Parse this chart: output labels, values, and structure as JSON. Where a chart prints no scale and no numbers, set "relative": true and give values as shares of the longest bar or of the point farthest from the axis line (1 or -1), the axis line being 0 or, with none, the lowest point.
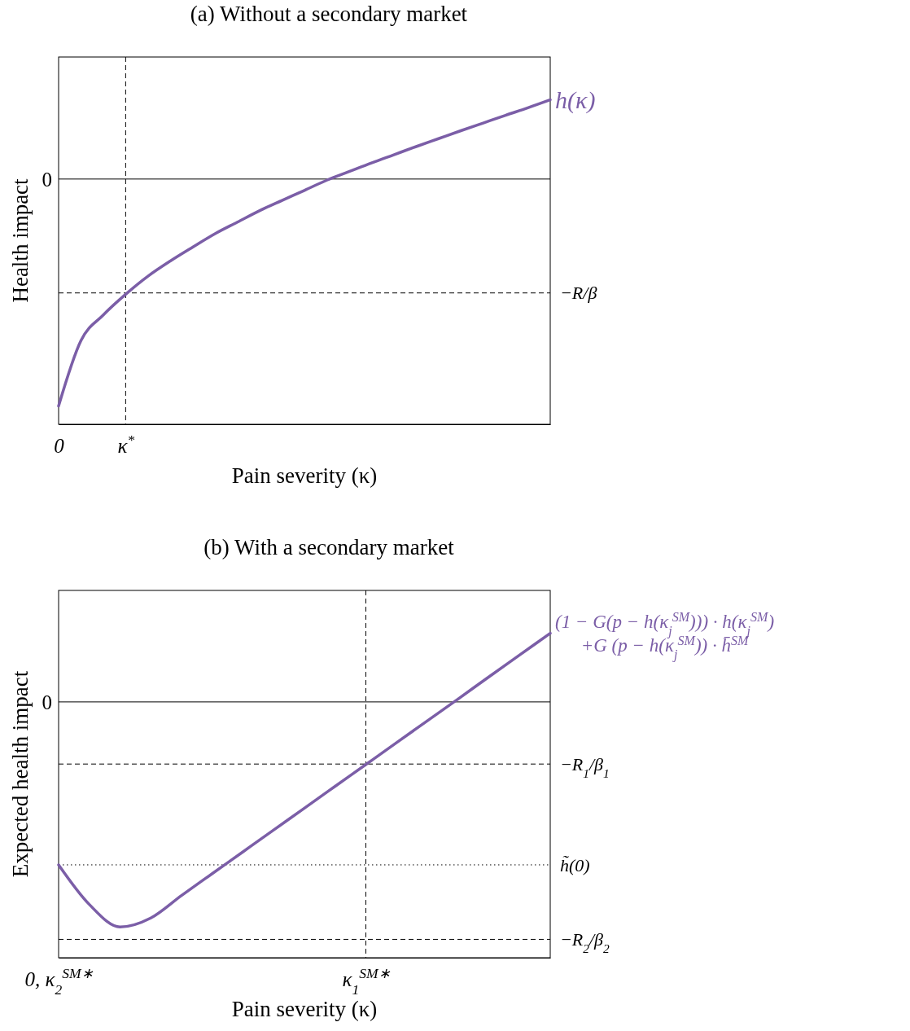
{
  "chart_data": [
    {
      "type": "line",
      "title": "(a) Without a secondary market",
      "xlabel": "Pain severity (κ)",
      "ylabel": "Health impact",
      "relative": true,
      "line_style": "solid",
      "categories": [
        "0",
        null,
        null,
        "κ$^{*}$",
        null,
        null,
        null,
        null,
        null,
        null,
        null,
        null,
        null,
        null,
        null,
        null,
        null,
        null,
        null,
        null,
        null,
        null,
        null
      ],
      "series": [
        {
          "name": "h(κ)",
          "color": "#7b5ea7",
          "values": [
            -1,
            -0.712,
            -0.599,
            -0.508,
            -0.428,
            -0.361,
            -0.3,
            -0.241,
            -0.19,
            -0.139,
            -0.094,
            -0.05,
            -0.005,
            0.033,
            0.071,
            0.107,
            0.143,
            0.178,
            0.213,
            0.247,
            0.281,
            0.314,
            0.349
          ]
        }
      ],
      "ref_lines": [
        {
          "axis": "y",
          "value": 0,
          "label": "0",
          "line_style": "solid",
          "color": "#000000"
        },
        {
          "axis": "y",
          "value": -0.502,
          "label": "−R/β",
          "line_style": "dashed",
          "color": "#000000"
        },
        {
          "axis": "x",
          "value": "κ$^{*}$",
          "line_style": "dashed",
          "color": "#000000"
        }
      ]
    },
    {
      "type": "line",
      "title": "(b) With a secondary market",
      "xlabel": "Pain severity (κ)",
      "ylabel": "Expected health impact",
      "relative": true,
      "line_style": "solid",
      "categories": [
        "0, κ$_{2}$$^{SM∗}$",
        null,
        null,
        null,
        null,
        null,
        null,
        null,
        null,
        null,
        "κ$_{1}$$^{SM∗}$",
        null,
        null,
        null,
        null,
        null,
        null
      ],
      "series": [
        {
          "name": "(1 − G(p − h(κ$_{j}$$^{SM}$))) · h(κ$_{j}$$^{SM}$)\n+G (p − h(κ$_{j}$$^{SM}$)) · h̄$^{SM}$",
          "color": "#7b5ea7",
          "values": [
            -0.724,
            -0.9,
            -1,
            -0.96,
            -0.86,
            -0.763,
            -0.666,
            -0.569,
            -0.472,
            -0.375,
            -0.278,
            -0.181,
            -0.084,
            0.013,
            0.111,
            0.208,
            0.305
          ]
        }
      ],
      "ref_lines": [
        {
          "axis": "y",
          "value": 0,
          "label": "0",
          "line_style": "solid",
          "color": "#000000"
        },
        {
          "axis": "y",
          "value": -0.276,
          "label": "−R$_{1}$/β$_{1}$",
          "line_style": "dashed",
          "color": "#000000"
        },
        {
          "axis": "y",
          "value": -0.724,
          "label": "h̃(0)",
          "line_style": "dotted",
          "color": "#000000"
        },
        {
          "axis": "y",
          "value": -1.055,
          "label": "−R$_{2}$/β$_{2}$",
          "line_style": "dashed",
          "color": "#000000"
        },
        {
          "axis": "x",
          "value": "κ$_{1}$$^{SM∗}$",
          "line_style": "dashed",
          "color": "#000000"
        }
      ]
    }
  ]
}
